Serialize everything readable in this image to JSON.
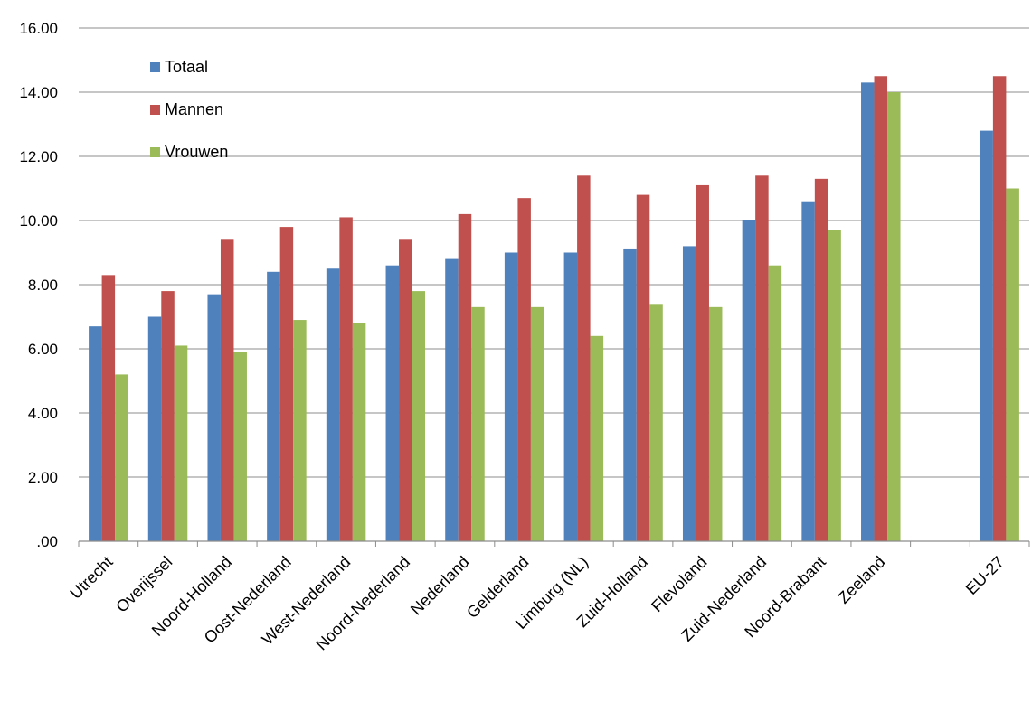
{
  "chart_data": {
    "type": "bar",
    "title": "",
    "xlabel": "",
    "ylabel": "",
    "ylim": [
      0,
      16
    ],
    "y_ticks": [
      ".00",
      "2.00",
      "4.00",
      "6.00",
      "8.00",
      "10.00",
      "12.00",
      "14.00",
      "16.00"
    ],
    "grid": true,
    "legend_position": "top-left",
    "categories": [
      "Utrecht",
      "Overijssel",
      "Noord-Holland",
      "Oost-Nederland",
      "West-Nederland",
      "Noord-Nederland",
      "Nederland",
      "Gelderland",
      "Limburg (NL)",
      "Zuid-Holland",
      "Flevoland",
      "Zuid-Nederland",
      "Noord-Brabant",
      "Zeeland",
      "",
      "EU-27"
    ],
    "series": [
      {
        "name": "Totaal",
        "color": "#4F81BD",
        "values": [
          6.7,
          7.0,
          7.7,
          8.4,
          8.5,
          8.6,
          8.8,
          9.0,
          9.0,
          9.1,
          9.2,
          10.0,
          10.6,
          14.3,
          null,
          12.8
        ]
      },
      {
        "name": "Mannen",
        "color": "#C0504D",
        "values": [
          8.3,
          7.8,
          9.4,
          9.8,
          10.1,
          9.4,
          10.2,
          10.7,
          11.4,
          10.8,
          11.1,
          11.4,
          11.3,
          14.5,
          null,
          14.5
        ]
      },
      {
        "name": "Vrouwen",
        "color": "#9BBB59",
        "values": [
          5.2,
          6.1,
          5.9,
          6.9,
          6.8,
          7.8,
          7.3,
          7.3,
          6.4,
          7.4,
          7.3,
          8.6,
          9.7,
          14.0,
          null,
          11.0
        ]
      }
    ]
  }
}
